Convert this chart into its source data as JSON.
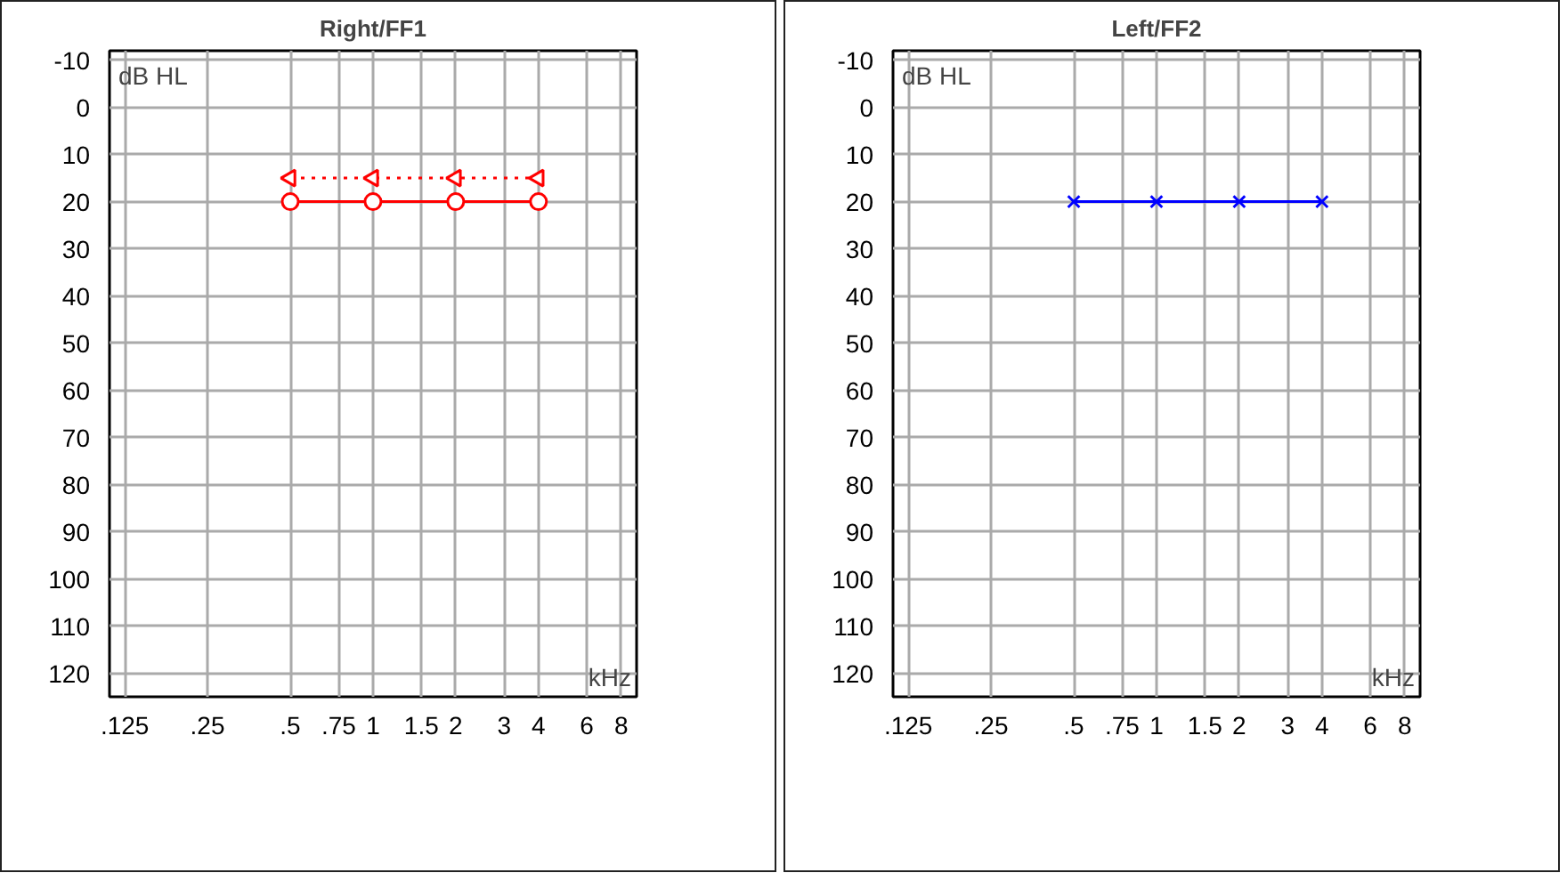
{
  "chart_data": [
    {
      "type": "line",
      "title": "Right/FF1",
      "xlabel": "kHz",
      "ylabel": "dB HL",
      "log": "x",
      "grid": true,
      "xlim": [
        0.11,
        9.1
      ],
      "ylim": [
        125,
        -12
      ],
      "xticks": [
        {
          "value": 0.125,
          "label": ".125"
        },
        {
          "value": 0.25,
          "label": ".25"
        },
        {
          "value": 0.5,
          "label": ".5"
        },
        {
          "value": 0.75,
          "label": ".75"
        },
        1,
        1.5,
        2,
        3,
        4,
        6,
        8
      ],
      "yticks": [
        -10,
        0,
        10,
        20,
        30,
        40,
        50,
        60,
        70,
        80,
        90,
        100,
        110,
        120
      ],
      "x": [
        0.5,
        1,
        2,
        4
      ],
      "series": [
        {
          "color": "#ff0000",
          "values": [
            20,
            20,
            20,
            20
          ],
          "marker": "circle",
          "line_style": "solid"
        },
        {
          "color": "#ff0000",
          "values": [
            15,
            15,
            15,
            15
          ],
          "marker": "triangle",
          "line_style": "dotted"
        }
      ]
    },
    {
      "type": "line",
      "title": "Left/FF2",
      "xlabel": "kHz",
      "ylabel": "dB HL",
      "log": "x",
      "grid": true,
      "xlim": [
        0.11,
        9.1
      ],
      "ylim": [
        125,
        -12
      ],
      "xticks": [
        {
          "value": 0.125,
          "label": ".125"
        },
        {
          "value": 0.25,
          "label": ".25"
        },
        {
          "value": 0.5,
          "label": ".5"
        },
        {
          "value": 0.75,
          "label": ".75"
        },
        1,
        1.5,
        2,
        3,
        4,
        6,
        8
      ],
      "yticks": [
        -10,
        0,
        10,
        20,
        30,
        40,
        50,
        60,
        70,
        80,
        90,
        100,
        110,
        120
      ],
      "x": [
        0.5,
        1,
        2,
        4
      ],
      "series": [
        {
          "color": "#0000ff",
          "values": [
            20,
            20,
            20,
            20
          ],
          "marker": "cross",
          "line_style": "solid"
        }
      ]
    }
  ]
}
